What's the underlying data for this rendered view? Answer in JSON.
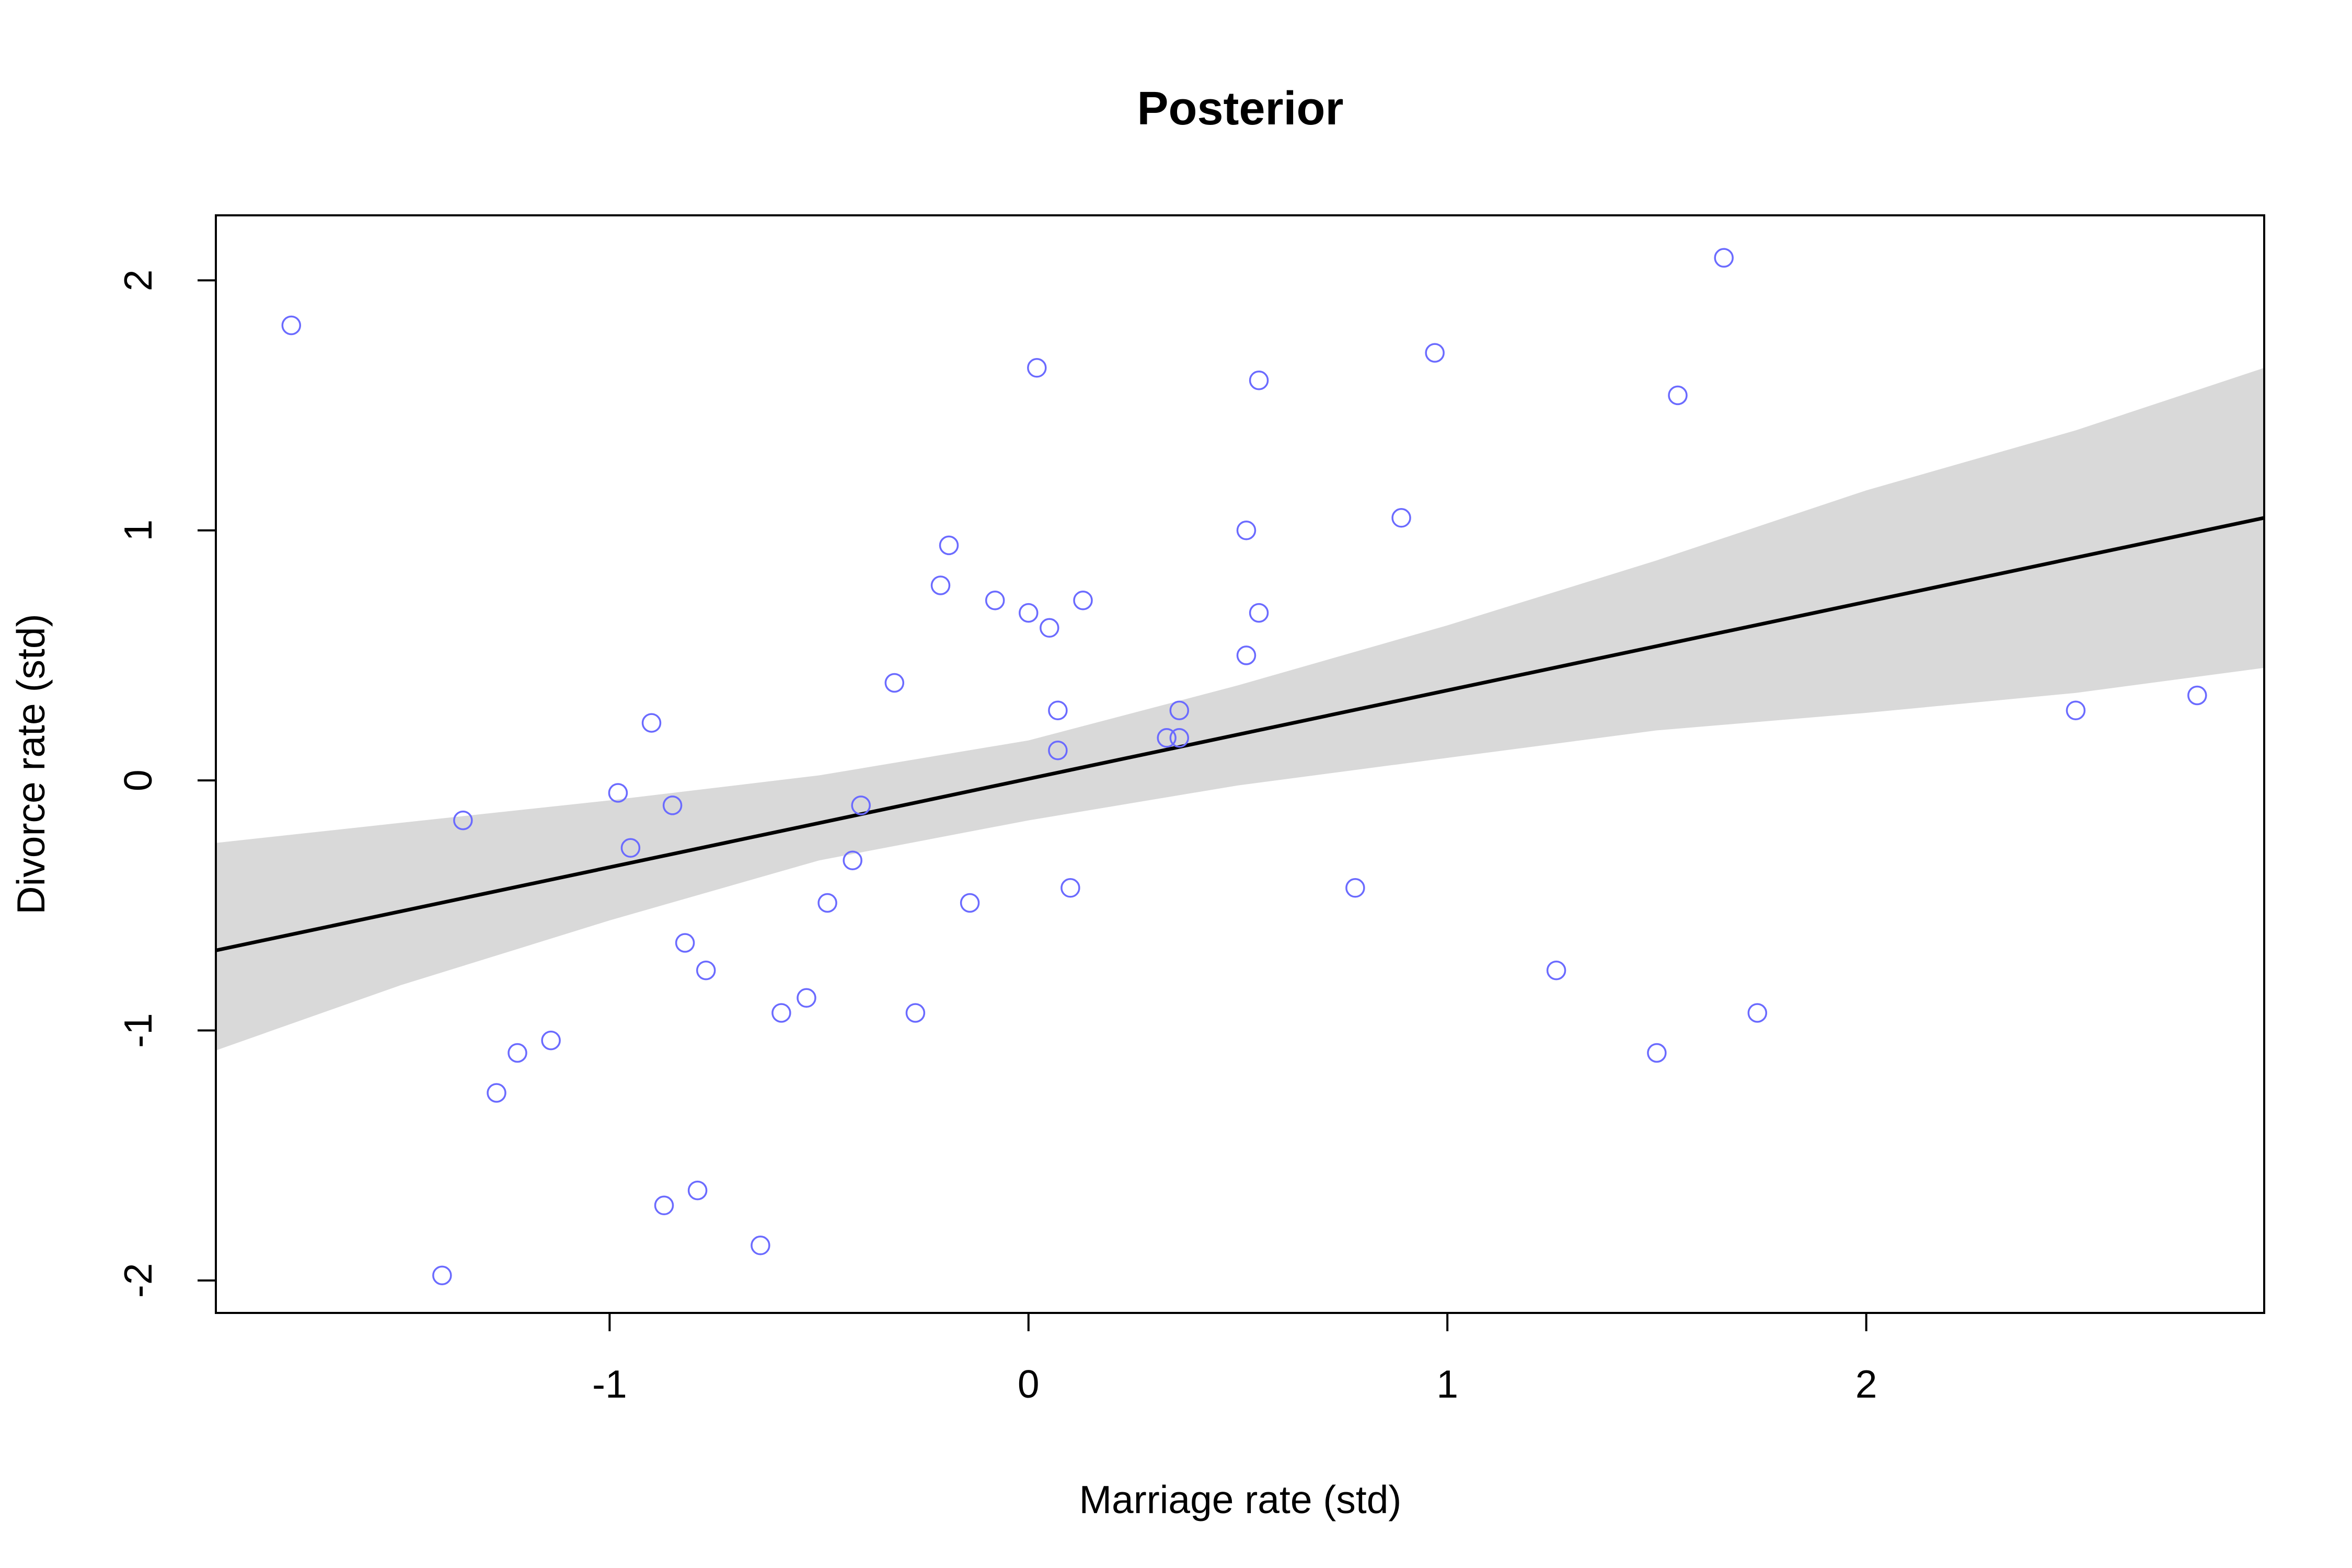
{
  "chart_data": {
    "type": "scatter",
    "title": "Posterior",
    "xlabel": "Marriage rate (std)",
    "ylabel": "Divorce rate (std)",
    "xlim": [
      -1.94,
      2.95
    ],
    "ylim": [
      -2.13,
      2.26
    ],
    "x_ticks": [
      {
        "value": -1,
        "label": "-1"
      },
      {
        "value": 0,
        "label": "0"
      },
      {
        "value": 1,
        "label": "1"
      },
      {
        "value": 2,
        "label": "2"
      }
    ],
    "y_ticks": [
      {
        "value": -2,
        "label": "-2"
      },
      {
        "value": -1,
        "label": "-1"
      },
      {
        "value": 0,
        "label": "0"
      },
      {
        "value": 1,
        "label": "1"
      },
      {
        "value": 2,
        "label": "2"
      }
    ],
    "grid": false,
    "legend": false,
    "points_color": "#6b6bff",
    "line_color": "#000000",
    "band_color": "#d9d9d9",
    "points": [
      {
        "x": -1.76,
        "y": 1.82
      },
      {
        "x": -1.4,
        "y": -1.98
      },
      {
        "x": -1.35,
        "y": -0.16
      },
      {
        "x": -1.27,
        "y": -1.25
      },
      {
        "x": -1.22,
        "y": -1.09
      },
      {
        "x": -1.14,
        "y": -1.04
      },
      {
        "x": -0.98,
        "y": -0.05
      },
      {
        "x": -0.95,
        "y": -0.27
      },
      {
        "x": -0.9,
        "y": 0.23
      },
      {
        "x": -0.87,
        "y": -1.7
      },
      {
        "x": -0.85,
        "y": -0.1
      },
      {
        "x": -0.82,
        "y": -0.65
      },
      {
        "x": -0.79,
        "y": -1.64
      },
      {
        "x": -0.77,
        "y": -0.76
      },
      {
        "x": -0.64,
        "y": -1.86
      },
      {
        "x": -0.59,
        "y": -0.93
      },
      {
        "x": -0.53,
        "y": -0.87
      },
      {
        "x": -0.48,
        "y": -0.49
      },
      {
        "x": -0.42,
        "y": -0.32
      },
      {
        "x": -0.4,
        "y": -0.1
      },
      {
        "x": -0.32,
        "y": 0.39
      },
      {
        "x": -0.27,
        "y": -0.93
      },
      {
        "x": -0.21,
        "y": 0.78
      },
      {
        "x": -0.19,
        "y": 0.94
      },
      {
        "x": -0.14,
        "y": -0.49
      },
      {
        "x": -0.08,
        "y": 0.72
      },
      {
        "x": 0.0,
        "y": 0.67
      },
      {
        "x": 0.02,
        "y": 1.65
      },
      {
        "x": 0.05,
        "y": 0.61
      },
      {
        "x": 0.07,
        "y": 0.28
      },
      {
        "x": 0.07,
        "y": 0.12
      },
      {
        "x": 0.1,
        "y": -0.43
      },
      {
        "x": 0.13,
        "y": 0.72
      },
      {
        "x": 0.33,
        "y": 0.17
      },
      {
        "x": 0.36,
        "y": 0.28
      },
      {
        "x": 0.36,
        "y": 0.17
      },
      {
        "x": 0.52,
        "y": 1.0
      },
      {
        "x": 0.52,
        "y": 0.5
      },
      {
        "x": 0.55,
        "y": 1.6
      },
      {
        "x": 0.55,
        "y": 0.67
      },
      {
        "x": 0.78,
        "y": -0.43
      },
      {
        "x": 0.89,
        "y": 1.05
      },
      {
        "x": 0.97,
        "y": 1.71
      },
      {
        "x": 1.26,
        "y": -0.76
      },
      {
        "x": 1.5,
        "y": -1.09
      },
      {
        "x": 1.55,
        "y": 1.54
      },
      {
        "x": 1.66,
        "y": 2.09
      },
      {
        "x": 1.74,
        "y": -0.93
      },
      {
        "x": 2.5,
        "y": 0.28
      },
      {
        "x": 2.79,
        "y": 0.34
      }
    ],
    "mean_line": [
      {
        "x": -1.94,
        "y": -0.68
      },
      {
        "x": 2.95,
        "y": 1.05
      }
    ],
    "interval_band": [
      {
        "x": -1.94,
        "lower": -1.08,
        "upper": -0.25
      },
      {
        "x": -1.5,
        "lower": -0.82,
        "upper": -0.17
      },
      {
        "x": -1.0,
        "lower": -0.56,
        "upper": -0.08
      },
      {
        "x": -0.5,
        "lower": -0.32,
        "upper": 0.02
      },
      {
        "x": 0.0,
        "lower": -0.16,
        "upper": 0.16
      },
      {
        "x": 0.5,
        "lower": -0.02,
        "upper": 0.38
      },
      {
        "x": 1.0,
        "lower": 0.09,
        "upper": 0.62
      },
      {
        "x": 1.5,
        "lower": 0.2,
        "upper": 0.88
      },
      {
        "x": 2.0,
        "lower": 0.27,
        "upper": 1.16
      },
      {
        "x": 2.5,
        "lower": 0.35,
        "upper": 1.4
      },
      {
        "x": 2.95,
        "lower": 0.45,
        "upper": 1.65
      }
    ]
  }
}
